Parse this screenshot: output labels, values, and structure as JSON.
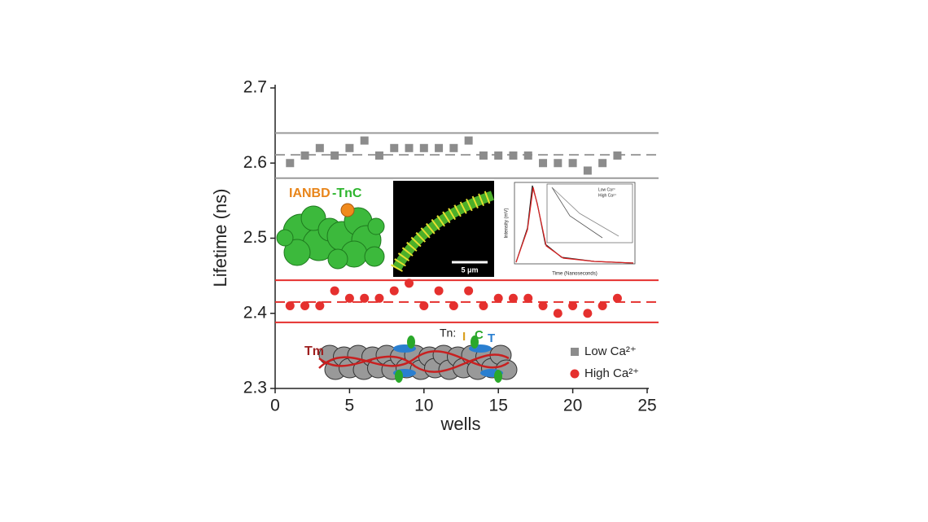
{
  "chart_data": {
    "type": "scatter",
    "x_label": "wells",
    "y_label": "Lifetime (ns)",
    "x": [
      1,
      2,
      3,
      4,
      5,
      6,
      7,
      8,
      9,
      10,
      11,
      12,
      13,
      14,
      15,
      16,
      17,
      18,
      19,
      20,
      21,
      22,
      23
    ],
    "series": [
      {
        "name": "Low Ca²⁺",
        "color": "#8c8c8c",
        "marker": "square",
        "values": [
          2.6,
          2.61,
          2.62,
          2.61,
          2.62,
          2.63,
          2.61,
          2.62,
          2.62,
          2.62,
          2.62,
          2.62,
          2.63,
          2.61,
          2.61,
          2.61,
          2.61,
          2.6,
          2.6,
          2.6,
          2.59,
          2.6,
          2.61
        ]
      },
      {
        "name": "High Ca²⁺",
        "color": "#e5302e",
        "marker": "circle",
        "values": [
          2.41,
          2.41,
          2.41,
          2.43,
          2.42,
          2.42,
          2.42,
          2.43,
          2.44,
          2.41,
          2.43,
          2.41,
          2.43,
          2.41,
          2.42,
          2.42,
          2.42,
          2.41,
          2.4,
          2.41,
          2.4,
          2.41,
          2.42
        ]
      }
    ],
    "hlines": [
      {
        "value": 2.64,
        "color": "#9a9a9a",
        "dashed": false
      },
      {
        "value": 2.611,
        "color": "#9a9a9a",
        "dashed": true
      },
      {
        "value": 2.58,
        "color": "#9a9a9a",
        "dashed": false
      },
      {
        "value": 2.444,
        "color": "#e5302e",
        "dashed": false
      },
      {
        "value": 2.415,
        "color": "#e5302e",
        "dashed": true
      },
      {
        "value": 2.388,
        "color": "#e5302e",
        "dashed": false
      }
    ],
    "xlim": [
      0,
      25
    ],
    "ylim": [
      2.3,
      2.7
    ],
    "xticks": [
      0,
      5,
      10,
      15,
      20,
      25
    ],
    "yticks": [
      2.3,
      2.4,
      2.5,
      2.6,
      2.7
    ],
    "legend": "lower right",
    "annotations": [
      {
        "text": "IANBD"
      },
      {
        "text": "-TnC"
      },
      {
        "text": "5 μm"
      },
      {
        "text": "Time (Nanoseconds)"
      },
      {
        "text": "Intensity (mV)"
      },
      {
        "text": "Low Ca²⁺"
      },
      {
        "text": "High Ca²⁺"
      },
      {
        "text": "Tm"
      },
      {
        "text": "Tn:"
      },
      {
        "text": "I"
      },
      {
        "text": "C"
      },
      {
        "text": "T"
      }
    ]
  }
}
